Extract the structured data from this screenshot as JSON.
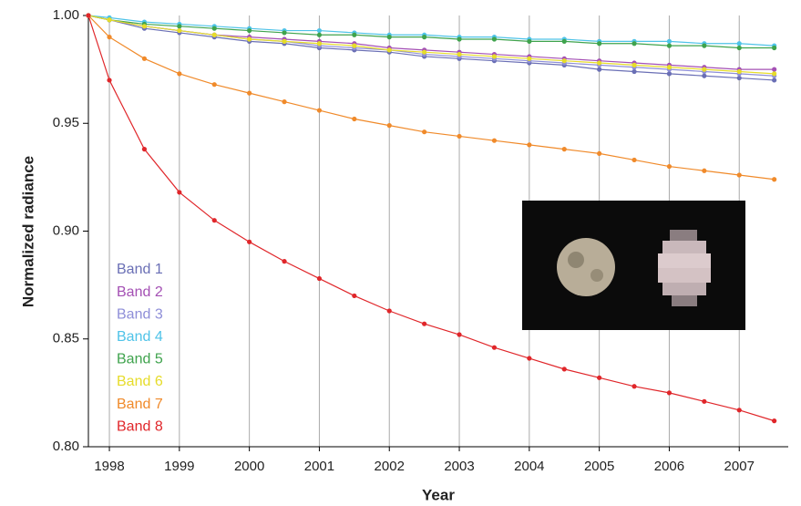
{
  "chart_data": {
    "type": "line",
    "x_label": "Year",
    "y_label": "Normalized radiance",
    "xlim": [
      1997.7,
      2007.7
    ],
    "ylim": [
      0.8,
      1.0
    ],
    "xticks": [
      1998,
      1999,
      2000,
      2001,
      2002,
      2003,
      2004,
      2005,
      2006,
      2007
    ],
    "yticks": [
      {
        "value": 0.8,
        "label": "0.80"
      },
      0.85,
      {
        "value": 0.9,
        "label": "0.90"
      },
      0.95,
      {
        "value": 1.0,
        "label": "1.00"
      }
    ],
    "grid": "x",
    "legend": "left",
    "x": [
      1997.7,
      1998,
      1998.5,
      1999,
      1999.5,
      2000,
      2000.5,
      2001,
      2001.5,
      2002,
      2002.5,
      2003,
      2003.5,
      2004,
      2004.5,
      2005,
      2005.5,
      2006,
      2006.5,
      2007,
      2007.5
    ],
    "series": [
      {
        "name": "Band 1",
        "color": "#6a6fb5",
        "values": [
          1.0,
          0.998,
          0.994,
          0.992,
          0.99,
          0.988,
          0.987,
          0.985,
          0.984,
          0.983,
          0.981,
          0.98,
          0.979,
          0.978,
          0.977,
          0.975,
          0.974,
          0.973,
          0.972,
          0.971,
          0.97
        ]
      },
      {
        "name": "Band 2",
        "color": "#a450b4",
        "values": [
          1.0,
          0.998,
          0.995,
          0.993,
          0.991,
          0.99,
          0.989,
          0.988,
          0.987,
          0.985,
          0.984,
          0.983,
          0.982,
          0.981,
          0.98,
          0.979,
          0.978,
          0.977,
          0.976,
          0.975,
          0.975
        ]
      },
      {
        "name": "Band 3",
        "color": "#8e8ed8",
        "values": [
          1.0,
          0.998,
          0.995,
          0.993,
          0.991,
          0.989,
          0.988,
          0.986,
          0.985,
          0.984,
          0.982,
          0.981,
          0.98,
          0.979,
          0.978,
          0.977,
          0.976,
          0.975,
          0.974,
          0.973,
          0.972
        ]
      },
      {
        "name": "Band 4",
        "color": "#4fc3e8",
        "values": [
          1.0,
          0.999,
          0.997,
          0.996,
          0.995,
          0.994,
          0.993,
          0.993,
          0.992,
          0.991,
          0.991,
          0.99,
          0.99,
          0.989,
          0.989,
          0.988,
          0.988,
          0.988,
          0.987,
          0.987,
          0.986
        ]
      },
      {
        "name": "Band 5",
        "color": "#3fa34d",
        "values": [
          1.0,
          0.998,
          0.996,
          0.995,
          0.994,
          0.993,
          0.992,
          0.991,
          0.991,
          0.99,
          0.99,
          0.989,
          0.989,
          0.988,
          0.988,
          0.987,
          0.987,
          0.986,
          0.986,
          0.985,
          0.985
        ]
      },
      {
        "name": "Band 6",
        "color": "#e6dc2a",
        "values": [
          1.0,
          0.998,
          0.995,
          0.993,
          0.991,
          0.989,
          0.988,
          0.987,
          0.986,
          0.984,
          0.983,
          0.982,
          0.981,
          0.98,
          0.979,
          0.978,
          0.977,
          0.976,
          0.975,
          0.974,
          0.973
        ]
      },
      {
        "name": "Band 7",
        "color": "#f08a2a",
        "values": [
          1.0,
          0.99,
          0.98,
          0.973,
          0.968,
          0.964,
          0.96,
          0.956,
          0.952,
          0.949,
          0.946,
          0.944,
          0.942,
          0.94,
          0.938,
          0.936,
          0.933,
          0.93,
          0.928,
          0.926,
          0.924
        ]
      },
      {
        "name": "Band 8",
        "color": "#e0262a",
        "values": [
          1.0,
          0.97,
          0.938,
          0.918,
          0.905,
          0.895,
          0.886,
          0.878,
          0.87,
          0.863,
          0.857,
          0.852,
          0.846,
          0.841,
          0.836,
          0.832,
          0.828,
          0.825,
          0.821,
          0.817,
          0.812
        ]
      }
    ]
  }
}
